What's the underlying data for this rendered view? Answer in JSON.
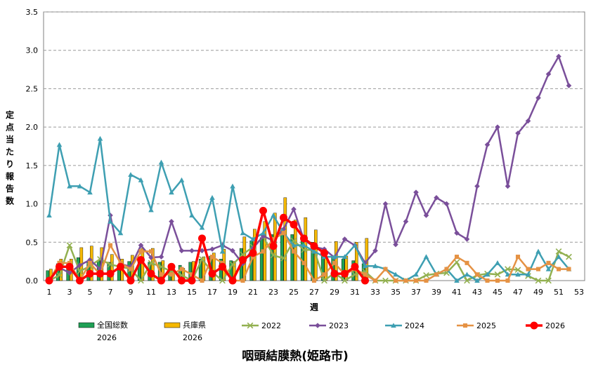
{
  "chart_data": {
    "type": "bar",
    "title": "咽頭結膜熱(姫路市)",
    "xlabel": "週",
    "ylabel": "定点当たり報告数",
    "ylim": [
      0,
      3.5
    ],
    "yticks": [
      "0.0",
      "0.5",
      "1.0",
      "1.5",
      "2.0",
      "2.5",
      "3.0",
      "3.5"
    ],
    "xlim": [
      1,
      53
    ],
    "xticks": [
      1,
      3,
      5,
      7,
      9,
      11,
      13,
      15,
      17,
      19,
      21,
      23,
      25,
      27,
      29,
      31,
      33,
      35,
      37,
      39,
      41,
      43,
      45,
      47,
      49,
      51,
      53
    ],
    "grid": "horizontal-dashed",
    "legend_position": "bottom",
    "colors": {
      "national": "#1fa055",
      "hyogo": "#f5b800",
      "y2022": "#92b050",
      "y2023": "#7a4f9a",
      "y2024": "#3e9fb2",
      "y2025": "#e59244",
      "y2026": "#ff0000"
    },
    "bars": [
      {
        "name_line1": "全国総数",
        "name_line2": "2026",
        "color_key": "national",
        "values": [
          0.13,
          0.22,
          0.23,
          0.3,
          0.25,
          0.26,
          0.24,
          0.18,
          0.25,
          0.3,
          0.24,
          0.24,
          0.21,
          0.2,
          0.24,
          0.28,
          0.32,
          0.28,
          0.26,
          0.42,
          0.52,
          0.56,
          0.6,
          0.65,
          0.6,
          0.55,
          0.5,
          0.4,
          0.32,
          0.28,
          0.26,
          0.22
        ]
      },
      {
        "name_line1": "兵庫県",
        "name_line2": "2026",
        "color_key": "hyogo",
        "values": [
          0.15,
          0.28,
          0.28,
          0.43,
          0.45,
          0.43,
          0.34,
          0.28,
          0.33,
          0.42,
          0.42,
          0.26,
          0.2,
          0.16,
          0.25,
          0.31,
          0.36,
          0.41,
          0.25,
          0.57,
          0.67,
          0.77,
          0.88,
          1.08,
          0.79,
          0.82,
          0.66,
          0.31,
          0.51,
          0.32,
          0.5,
          0.55
        ]
      }
    ],
    "series": [
      {
        "name": "2022",
        "color_key": "y2022",
        "marker": "x",
        "values": [
          0.0,
          0.07,
          0.46,
          0.12,
          0.19,
          0.28,
          0.21,
          0.18,
          0.15,
          0.0,
          0.23,
          0.18,
          0.12,
          0.07,
          0.0,
          0.28,
          0.11,
          0.0,
          0.21,
          0.34,
          0.44,
          0.57,
          0.33,
          0.29,
          0.52,
          0.4,
          0.4,
          0.0,
          0.1,
          0.0,
          0.08,
          0.12,
          0.0,
          0.0,
          0.0,
          0.0,
          0.0,
          0.07,
          0.09,
          0.1,
          0.24,
          0.0,
          0.07,
          0.09,
          0.08,
          0.15,
          0.14,
          0.06,
          0.0,
          0.0,
          0.38,
          0.31
        ]
      },
      {
        "name": "2023",
        "color_key": "y2023",
        "marker": "diamond",
        "values": [
          0.0,
          0.17,
          0.1,
          0.2,
          0.27,
          0.15,
          0.85,
          0.22,
          0.18,
          0.46,
          0.3,
          0.31,
          0.77,
          0.39,
          0.39,
          0.39,
          0.41,
          0.46,
          0.39,
          0.22,
          0.42,
          0.58,
          0.52,
          0.67,
          0.93,
          0.53,
          0.44,
          0.41,
          0.3,
          0.54,
          0.46,
          0.23,
          0.39,
          1.0,
          0.47,
          0.77,
          1.15,
          0.85,
          1.08,
          1.0,
          0.62,
          0.54,
          1.23,
          1.77,
          2.0,
          1.23,
          1.92,
          2.08,
          2.38,
          2.69,
          2.92,
          2.54
        ]
      },
      {
        "name": "2024",
        "color_key": "y2024",
        "marker": "triangle",
        "values": [
          0.85,
          1.77,
          1.23,
          1.23,
          1.15,
          1.85,
          0.77,
          0.62,
          1.38,
          1.31,
          0.92,
          1.54,
          1.15,
          1.31,
          0.85,
          0.69,
          1.08,
          0.38,
          1.23,
          0.62,
          0.54,
          0.62,
          0.85,
          0.62,
          0.46,
          0.46,
          0.38,
          0.31,
          0.31,
          0.31,
          0.46,
          0.19,
          0.19,
          0.15,
          0.08,
          0.0,
          0.08,
          0.31,
          0.08,
          0.15,
          0.0,
          0.08,
          0.0,
          0.08,
          0.23,
          0.08,
          0.08,
          0.08,
          0.38,
          0.15,
          0.31,
          0.15
        ]
      },
      {
        "name": "2025",
        "color_key": "y2025",
        "marker": "square",
        "values": [
          0.0,
          0.23,
          0.23,
          0.0,
          0.23,
          0.08,
          0.46,
          0.23,
          0.15,
          0.38,
          0.38,
          0.08,
          0.08,
          0.15,
          0.08,
          0.0,
          0.31,
          0.23,
          0.0,
          0.0,
          0.31,
          0.38,
          0.54,
          0.62,
          0.38,
          0.23,
          0.0,
          0.08,
          0.23,
          0.08,
          0.15,
          0.08,
          0.0,
          0.15,
          0.0,
          0.0,
          0.0,
          0.0,
          0.08,
          0.15,
          0.31,
          0.23,
          0.08,
          0.0,
          0.0,
          0.0,
          0.31,
          0.15,
          0.15,
          0.23,
          0.15,
          0.15
        ]
      },
      {
        "name": "2026",
        "color_key": "y2026",
        "marker": "circle",
        "values": [
          0.0,
          0.18,
          0.18,
          0.0,
          0.09,
          0.09,
          0.09,
          0.18,
          0.0,
          0.27,
          0.09,
          0.0,
          0.18,
          0.0,
          0.0,
          0.55,
          0.09,
          0.18,
          0.0,
          0.27,
          0.36,
          0.91,
          0.45,
          0.82,
          0.73,
          0.55,
          0.45,
          0.36,
          0.09,
          0.09,
          0.18,
          0.0
        ]
      }
    ]
  }
}
